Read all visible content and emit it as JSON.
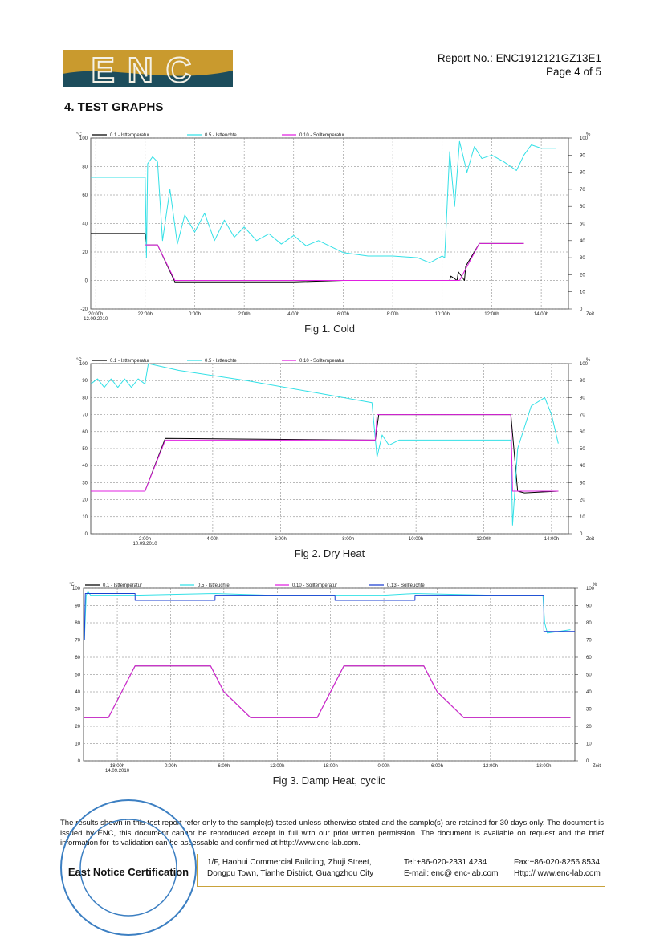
{
  "header": {
    "logo": "ENC",
    "report_no": "Report No.: ENC1912121GZ13E1",
    "page": "Page 4 of 5"
  },
  "section_title": "4. TEST GRAPHS",
  "chart_data": [
    {
      "type": "line",
      "caption": "Fig 1. Cold",
      "date": "12.09.2010",
      "y_unit": "°C",
      "y2_unit": "%",
      "x_unit": "Zeit",
      "grid": true,
      "xlim": [
        19.8,
        39.1
      ],
      "xticks": [
        {
          "value": 20,
          "label": "20:00h"
        },
        {
          "value": 22,
          "label": "22:00h"
        },
        {
          "value": 24,
          "label": "0:00h"
        },
        {
          "value": 26,
          "label": "2:00h"
        },
        {
          "value": 28,
          "label": "4:00h"
        },
        {
          "value": 30,
          "label": "6:00h"
        },
        {
          "value": 32,
          "label": "8:00h"
        },
        {
          "value": 34,
          "label": "10:00h"
        },
        {
          "value": 36,
          "label": "12:00h"
        },
        {
          "value": 38,
          "label": "14:00h"
        }
      ],
      "ylim": [
        -20,
        100
      ],
      "yticks": [
        -20,
        0,
        20,
        40,
        60,
        80,
        100
      ],
      "y2lim": [
        0,
        100
      ],
      "y2ticks": [
        0,
        10,
        20,
        30,
        40,
        50,
        60,
        70,
        80,
        90,
        100
      ],
      "series": [
        {
          "name": "0.1 - Isttemperatur",
          "color": "#000000",
          "axis": "y",
          "x": [
            19.8,
            22,
            22.05,
            22.5,
            23.2,
            24,
            26,
            28,
            30,
            32,
            34,
            34.3,
            34.35,
            34.6,
            34.65,
            34.9,
            34.95,
            35.5,
            37.3
          ],
          "values": [
            33,
            33,
            25,
            25,
            -1,
            -1,
            -1,
            -1,
            0,
            0,
            0,
            0,
            3,
            0,
            6,
            0,
            10,
            26,
            26
          ]
        },
        {
          "name": "0.5 - Istfeuchte",
          "color": "#33e0e6",
          "axis": "y2",
          "x": [
            19.8,
            22,
            22.05,
            22.1,
            22.3,
            22.5,
            22.7,
            23,
            23.3,
            23.6,
            24,
            24.4,
            24.8,
            25.2,
            25.6,
            26,
            26.5,
            27,
            27.5,
            28,
            28.5,
            29,
            30,
            31,
            32,
            33,
            33.5,
            34,
            34.1,
            34.3,
            34.5,
            34.7,
            35,
            35.3,
            35.6,
            36,
            36.5,
            37,
            37.3,
            37.6,
            38,
            38.6
          ],
          "values": [
            77,
            77,
            30,
            85,
            89,
            86,
            40,
            70,
            38,
            55,
            45,
            56,
            40,
            52,
            42,
            48,
            40,
            44,
            38,
            43,
            37,
            40,
            33,
            31,
            31,
            30,
            27,
            31,
            30,
            92,
            60,
            98,
            80,
            95,
            88,
            90,
            86,
            81,
            90,
            96,
            94,
            94
          ]
        },
        {
          "name": "0.10 - Solltemperatur",
          "color": "#e020e0",
          "axis": "y",
          "x": [
            22,
            22.5,
            23.2,
            34.7,
            35.5,
            37.3
          ],
          "values": [
            25,
            25,
            0,
            0,
            26,
            26
          ]
        }
      ]
    },
    {
      "type": "line",
      "caption": "Fig 2. Dry Heat",
      "date": "10.09.2010",
      "y_unit": "°C",
      "y2_unit": "%",
      "x_unit": "Zeit",
      "grid": true,
      "xlim": [
        0.4,
        14.5
      ],
      "xticks": [
        {
          "value": 2,
          "label": "2:00h"
        },
        {
          "value": 4,
          "label": "4:00h"
        },
        {
          "value": 6,
          "label": "6:00h"
        },
        {
          "value": 8,
          "label": "8:00h"
        },
        {
          "value": 10,
          "label": "10:00h"
        },
        {
          "value": 12,
          "label": "12:00h"
        },
        {
          "value": 14,
          "label": "14:00h"
        }
      ],
      "ylim": [
        0,
        100
      ],
      "yticks": [
        0,
        10,
        20,
        30,
        40,
        50,
        60,
        70,
        80,
        90,
        100
      ],
      "y2lim": [
        0,
        100
      ],
      "y2ticks": [
        0,
        10,
        20,
        30,
        40,
        50,
        60,
        70,
        80,
        90,
        100
      ],
      "series": [
        {
          "name": "0.1 - Isttemperatur",
          "color": "#000000",
          "axis": "y",
          "x": [
            0.4,
            2,
            2.6,
            8.8,
            8.9,
            12.8,
            13.0,
            13.2,
            14.2
          ],
          "values": [
            25,
            25,
            56,
            55,
            70,
            70,
            25,
            24,
            25
          ]
        },
        {
          "name": "0.5 - Istfeuchte",
          "color": "#33e0e6",
          "axis": "y2",
          "x": [
            0.4,
            0.6,
            0.8,
            1,
            1.2,
            1.4,
            1.6,
            1.8,
            2,
            2.1,
            3,
            5,
            7,
            8.7,
            8.85,
            9,
            9.2,
            9.5,
            11,
            12.8,
            12.85,
            13,
            13.4,
            13.8,
            14,
            14.2
          ],
          "values": [
            88,
            91,
            86,
            91,
            86,
            91,
            86,
            91,
            88,
            100,
            96,
            90,
            83,
            77,
            45,
            58,
            52,
            55,
            55,
            55,
            5,
            50,
            75,
            80,
            70,
            53
          ]
        },
        {
          "name": "0.10 - Solltemperatur",
          "color": "#e020e0",
          "axis": "y",
          "x": [
            0.4,
            2,
            2.6,
            8.8,
            8.85,
            12.8,
            12.85,
            14.2
          ],
          "values": [
            25,
            25,
            55,
            55,
            70,
            70,
            25,
            25
          ]
        }
      ]
    },
    {
      "type": "line",
      "caption": "Fig 3. Damp Heat, cyclic",
      "date": "14.09.2010",
      "y_unit": "°C",
      "y2_unit": "%",
      "x_unit": "Zeit",
      "grid": true,
      "xlim": [
        14.2,
        69.5
      ],
      "xticks": [
        {
          "value": 18,
          "label": "18:00h"
        },
        {
          "value": 24,
          "label": "0:00h"
        },
        {
          "value": 30,
          "label": "6:00h"
        },
        {
          "value": 36,
          "label": "12:00h"
        },
        {
          "value": 42,
          "label": "18:00h"
        },
        {
          "value": 48,
          "label": "0:00h"
        },
        {
          "value": 54,
          "label": "6:00h"
        },
        {
          "value": 60,
          "label": "12:00h"
        },
        {
          "value": 66,
          "label": "18:00h"
        }
      ],
      "ylim": [
        0,
        100
      ],
      "yticks": [
        0,
        10,
        20,
        30,
        40,
        50,
        60,
        70,
        80,
        90,
        100
      ],
      "y2lim": [
        0,
        100
      ],
      "y2ticks": [
        0,
        10,
        20,
        30,
        40,
        50,
        60,
        70,
        80,
        90,
        100
      ],
      "series": [
        {
          "name": "0.1 - Isttemperatur",
          "color": "#000000",
          "axis": "y",
          "x": [
            14.3,
            17,
            20,
            28.5,
            30,
            33,
            40.5,
            43.5,
            52.5,
            54,
            57,
            69
          ],
          "values": [
            25,
            25,
            55,
            55,
            40,
            25,
            25,
            55,
            55,
            40,
            25,
            25
          ]
        },
        {
          "name": "0.5 - Istfeuchte",
          "color": "#33e0e6",
          "axis": "y2",
          "x": [
            14.3,
            14.5,
            14.7,
            15,
            20,
            29,
            35,
            42.5,
            48,
            51.5,
            60,
            65.9,
            66.1,
            66.4,
            69
          ],
          "values": [
            70,
            96,
            98,
            96,
            96,
            97,
            96,
            96,
            96,
            97,
            96,
            96,
            80,
            74,
            76
          ]
        },
        {
          "name": "0.10 - Solltemperatur",
          "color": "#e020e0",
          "axis": "y",
          "x": [
            14.3,
            17,
            20,
            28.5,
            30,
            33,
            40.5,
            43.5,
            52.5,
            54,
            57,
            69
          ],
          "values": [
            25,
            25,
            55,
            55,
            40,
            25,
            25,
            55,
            55,
            40,
            25,
            25
          ]
        },
        {
          "name": "0.13 - Sollfeuchte",
          "color": "#1a3fd0",
          "axis": "y2",
          "x": [
            14.3,
            14.4,
            20,
            20.01,
            29,
            29.01,
            42.5,
            42.51,
            51.5,
            51.51,
            66,
            66.01,
            69.5
          ],
          "values": [
            70,
            97,
            97,
            93,
            93,
            96,
            96,
            93,
            93,
            96,
            96,
            75,
            75
          ]
        }
      ]
    }
  ],
  "footer": {
    "disclaimer": "The results shown in this test report refer only to the sample(s) tested unless otherwise stated and the sample(s) are retained for 30 days only. The document is issued by ENC, this document cannot be reproduced except in full with our prior written permission. The document is available on request and the brief information for its validation can be assessable and confirmed at http://www.enc-lab.com.",
    "stamp": "East Notice Certification",
    "address": [
      "1/F, Haohui Commercial Building, Zhuji Street,",
      "Dongpu Town, Tianhe District, Guangzhou City"
    ],
    "contact": [
      "Tel:+86-020-2331 4234",
      "E-mail: enc@ enc-lab.com"
    ],
    "web": [
      "Fax:+86-020-8256 8534",
      "Http:// www.enc-lab.com"
    ]
  }
}
